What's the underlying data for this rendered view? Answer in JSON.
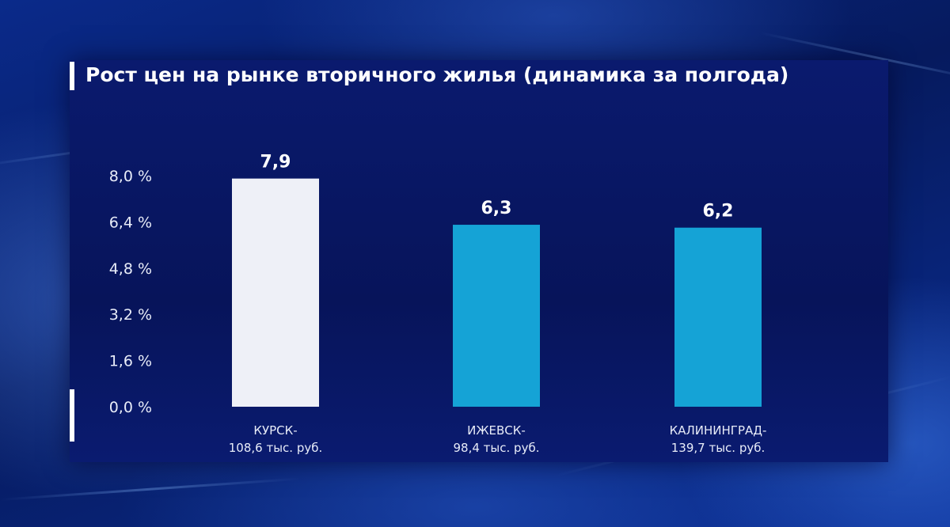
{
  "chart_data": {
    "type": "bar",
    "title": "Рост цен на рынке вторичного жилья (динамика за полгода)",
    "categories": [
      [
        "КУРСК-",
        "108,6 тыс. руб."
      ],
      [
        "ИЖЕВСК-",
        "98,4 тыс. руб."
      ],
      [
        "КАЛИНИНГРАД-",
        "139,7 тыс. руб."
      ]
    ],
    "values": [
      7.9,
      6.3,
      6.2
    ],
    "value_labels": [
      "7,9",
      "6,3",
      "6,2"
    ],
    "bar_colors": [
      "#eef0f7",
      "#15a3d6",
      "#15a3d6"
    ],
    "yticks": [
      0,
      1.6,
      3.2,
      4.8,
      6.4,
      8.0
    ],
    "ytick_labels": [
      "0,0 %",
      "1,6 %",
      "3,2 %",
      "4,8 %",
      "6,4 %",
      "8,0 %"
    ],
    "ylim": [
      0,
      8.0
    ],
    "grid": false,
    "legend": "none"
  }
}
